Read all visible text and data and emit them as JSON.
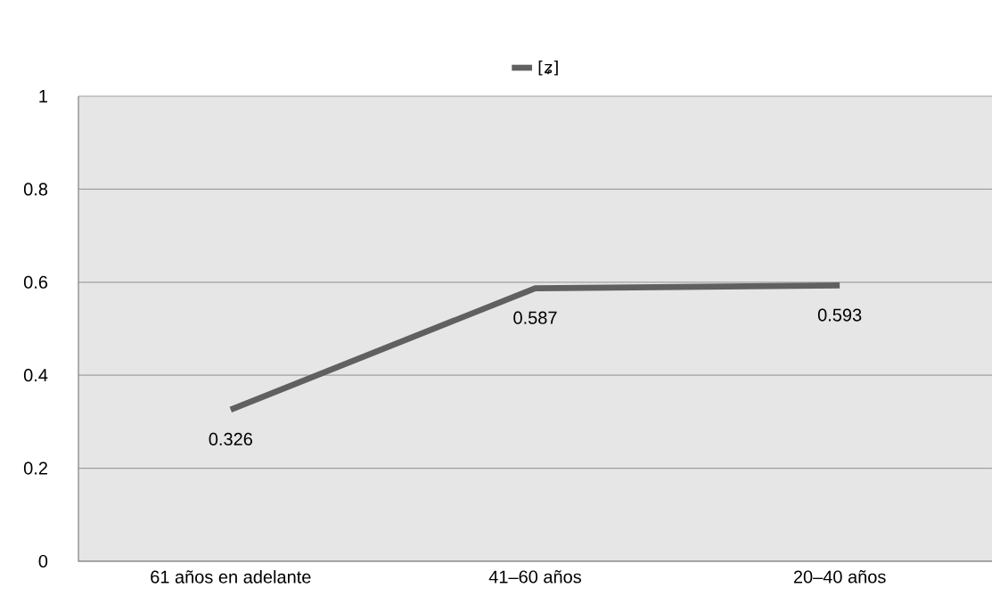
{
  "chart_data": {
    "type": "line",
    "categories": [
      "61 años en adelante",
      "41–60 años",
      "20–40 años"
    ],
    "series": [
      {
        "name": "[ʑ]",
        "color": "#606060",
        "values": [
          0.326,
          0.587,
          0.593
        ]
      }
    ],
    "ylim": [
      0,
      1
    ],
    "yticks": [
      0,
      0.2,
      0.4,
      0.6,
      0.8,
      1
    ],
    "grid": "y",
    "legend": "top",
    "data_labels": true,
    "marker": "none",
    "line_style": "solid"
  }
}
